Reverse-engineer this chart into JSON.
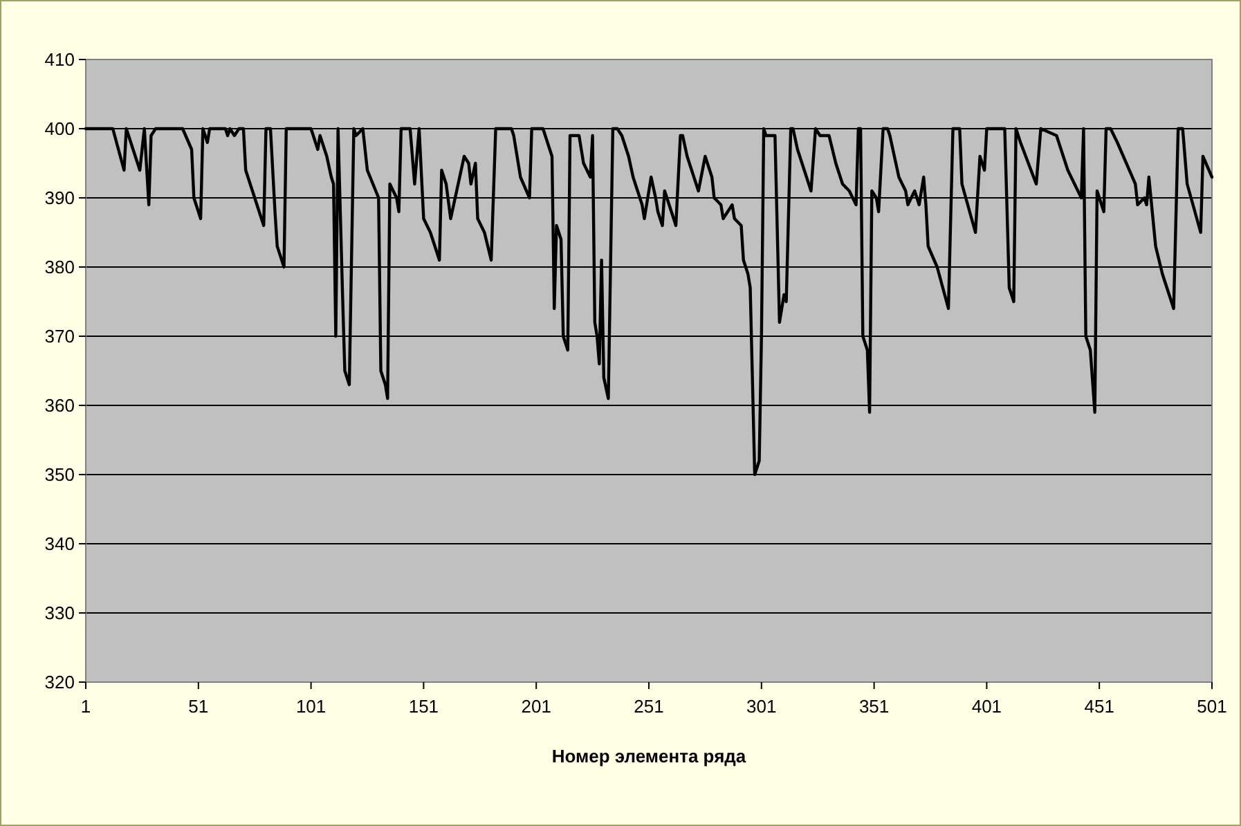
{
  "chart_data": {
    "type": "line",
    "xlabel": "Номер элемента ряда",
    "xlim": [
      1,
      501
    ],
    "xticks": [
      1,
      51,
      101,
      151,
      201,
      251,
      301,
      351,
      401,
      451,
      501
    ],
    "ylim": [
      320,
      410
    ],
    "yticks": [
      320,
      330,
      340,
      350,
      360,
      370,
      380,
      390,
      400,
      410
    ],
    "grid": "y",
    "marker": "none",
    "line_style": "solid",
    "series": [
      {
        "color": "#000000",
        "x": [
          1,
          13,
          18,
          19,
          25,
          27,
          29,
          30,
          32,
          44,
          48,
          49,
          52,
          53,
          55,
          56,
          63,
          64,
          65,
          67,
          69,
          71,
          72,
          75,
          78,
          80,
          81,
          83,
          85,
          86,
          89,
          90,
          101,
          104,
          105,
          108,
          110,
          111,
          112,
          113,
          115,
          116,
          118,
          120,
          121,
          124,
          126,
          131,
          132,
          134,
          135,
          136,
          139,
          140,
          141,
          145,
          147,
          149,
          151,
          154,
          156,
          158,
          159,
          161,
          163,
          169,
          171,
          172,
          174,
          175,
          178,
          181,
          183,
          190,
          191,
          194,
          198,
          199,
          204,
          208,
          209,
          210,
          212,
          213,
          215,
          216,
          220,
          222,
          225,
          226,
          227,
          228,
          229,
          230,
          231,
          233,
          235,
          237,
          239,
          242,
          244,
          248,
          249,
          252,
          254,
          255,
          257,
          258,
          260,
          263,
          265,
          266,
          268,
          270,
          273,
          276,
          279,
          280,
          283,
          284,
          288,
          289,
          292,
          293,
          295,
          296,
          298,
          300,
          301,
          302,
          303,
          307,
          309,
          311,
          312,
          314,
          315,
          317,
          320,
          323,
          325,
          327,
          331,
          334,
          337,
          340,
          343,
          344,
          345,
          346,
          348,
          349,
          350,
          352,
          353,
          355,
          357,
          358,
          360,
          362,
          365,
          366,
          369,
          371,
          373,
          374,
          375,
          379,
          384,
          386,
          389,
          390,
          396,
          398,
          400,
          401,
          409,
          411,
          413,
          414,
          416,
          423,
          425,
          432,
          437,
          443,
          444,
          445,
          447,
          449,
          450,
          453,
          454,
          456,
          459,
          467,
          468,
          471,
          472,
          473,
          476,
          479,
          484,
          486,
          488,
          490,
          496,
          497,
          501
        ],
        "values": [
          400,
          400,
          394,
          400,
          394,
          400,
          389,
          399,
          400,
          400,
          397,
          390,
          387,
          400,
          398,
          400,
          400,
          399,
          400,
          399,
          400,
          400,
          394,
          391,
          388,
          386,
          400,
          400,
          388,
          383,
          380,
          400,
          400,
          397,
          399,
          396,
          393,
          392,
          370,
          400,
          376,
          365,
          363,
          400,
          399,
          400,
          394,
          390,
          365,
          363,
          361,
          392,
          390,
          388,
          400,
          400,
          392,
          400,
          387,
          385,
          383,
          381,
          394,
          392,
          387,
          396,
          395,
          392,
          395,
          387,
          385,
          381,
          400,
          400,
          399,
          393,
          390,
          400,
          400,
          396,
          374,
          386,
          384,
          370,
          368,
          399,
          399,
          395,
          393,
          399,
          372,
          370,
          366,
          381,
          364,
          361,
          400,
          400,
          399,
          396,
          393,
          389,
          387,
          393,
          390,
          388,
          386,
          391,
          389,
          386,
          399,
          399,
          396,
          394,
          391,
          396,
          393,
          390,
          389,
          387,
          389,
          387,
          386,
          381,
          379,
          377,
          350,
          352,
          370,
          400,
          399,
          399,
          372,
          376,
          375,
          400,
          400,
          397,
          394,
          391,
          400,
          399,
          399,
          395,
          392,
          391,
          389,
          400,
          400,
          370,
          368,
          359,
          391,
          390,
          388,
          400,
          400,
          399,
          396,
          393,
          391,
          389,
          391,
          389,
          393,
          389,
          383,
          380,
          374,
          400,
          400,
          392,
          385,
          396,
          394,
          400,
          400,
          377,
          375,
          400,
          398,
          392,
          400,
          399,
          394,
          390,
          400,
          370,
          368,
          359,
          391,
          388,
          400,
          400,
          398,
          392,
          389,
          390,
          389,
          393,
          383,
          379,
          374,
          400,
          400,
          392,
          385,
          396,
          393
        ]
      }
    ]
  }
}
